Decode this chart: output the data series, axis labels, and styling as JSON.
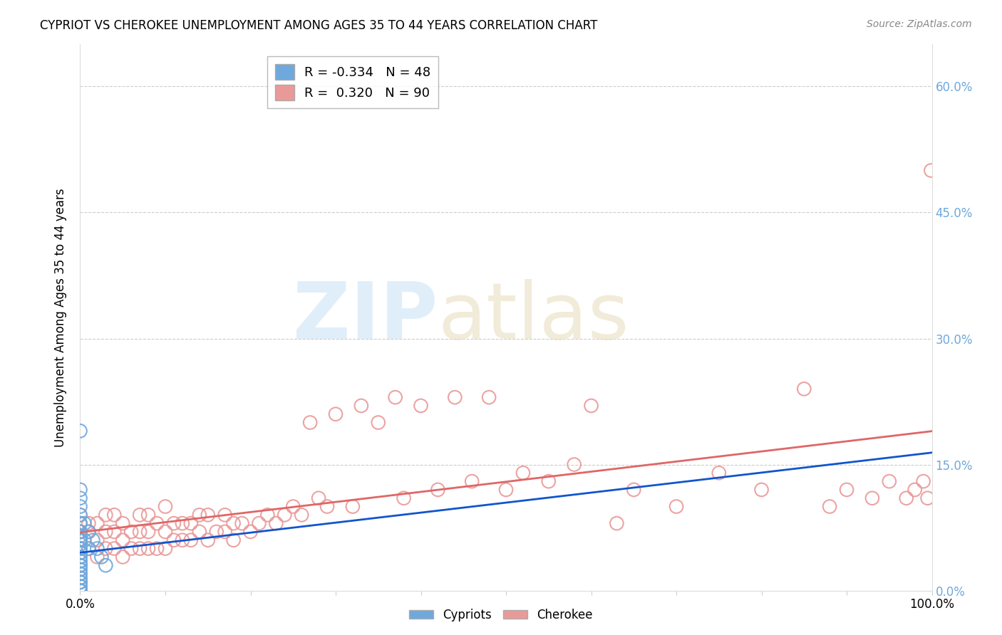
{
  "title": "CYPRIOT VS CHEROKEE UNEMPLOYMENT AMONG AGES 35 TO 44 YEARS CORRELATION CHART",
  "source": "Source: ZipAtlas.com",
  "ylabel": "Unemployment Among Ages 35 to 44 years",
  "xlim": [
    0,
    1.0
  ],
  "ylim": [
    0,
    0.65
  ],
  "xticks": [
    0.0,
    0.1,
    0.2,
    0.3,
    0.4,
    0.5,
    0.6,
    0.7,
    0.8,
    0.9,
    1.0
  ],
  "xticklabels": [
    "0.0%",
    "",
    "",
    "",
    "",
    "",
    "",
    "",
    "",
    "",
    "100.0%"
  ],
  "yticks": [
    0.0,
    0.15,
    0.3,
    0.45,
    0.6
  ],
  "yticklabels_right": [
    "0.0%",
    "15.0%",
    "30.0%",
    "45.0%",
    "60.0%"
  ],
  "cypriot_color": "#6fa8dc",
  "cherokee_color": "#ea9999",
  "cypriot_line_color": "#1155cc",
  "cherokee_line_color": "#e06666",
  "legend_r_cypriot": "-0.334",
  "legend_n_cypriot": "48",
  "legend_r_cherokee": "0.320",
  "legend_n_cherokee": "90",
  "cypriot_x": [
    0.0,
    0.0,
    0.0,
    0.0,
    0.0,
    0.0,
    0.0,
    0.0,
    0.0,
    0.0,
    0.0,
    0.0,
    0.0,
    0.0,
    0.0,
    0.0,
    0.0,
    0.0,
    0.0,
    0.0,
    0.0,
    0.0,
    0.0,
    0.0,
    0.0,
    0.0,
    0.0,
    0.0,
    0.0,
    0.0,
    0.0,
    0.0,
    0.0,
    0.0,
    0.0,
    0.0,
    0.0,
    0.0,
    0.0,
    0.0,
    0.005,
    0.005,
    0.01,
    0.01,
    0.015,
    0.02,
    0.025,
    0.03
  ],
  "cypriot_y": [
    0.0,
    0.0,
    0.0,
    0.0,
    0.0,
    0.005,
    0.005,
    0.01,
    0.01,
    0.01,
    0.015,
    0.015,
    0.02,
    0.02,
    0.025,
    0.025,
    0.03,
    0.03,
    0.03,
    0.035,
    0.035,
    0.04,
    0.04,
    0.045,
    0.045,
    0.05,
    0.05,
    0.055,
    0.06,
    0.06,
    0.065,
    0.07,
    0.07,
    0.08,
    0.08,
    0.09,
    0.1,
    0.11,
    0.12,
    0.19,
    0.06,
    0.08,
    0.05,
    0.07,
    0.06,
    0.05,
    0.04,
    0.03
  ],
  "cherokee_x": [
    0.0,
    0.0,
    0.0,
    0.0,
    0.0,
    0.01,
    0.01,
    0.01,
    0.02,
    0.02,
    0.02,
    0.03,
    0.03,
    0.03,
    0.04,
    0.04,
    0.04,
    0.05,
    0.05,
    0.05,
    0.06,
    0.06,
    0.07,
    0.07,
    0.07,
    0.08,
    0.08,
    0.08,
    0.09,
    0.09,
    0.1,
    0.1,
    0.1,
    0.11,
    0.11,
    0.12,
    0.12,
    0.13,
    0.13,
    0.14,
    0.14,
    0.15,
    0.15,
    0.16,
    0.17,
    0.17,
    0.18,
    0.18,
    0.19,
    0.2,
    0.21,
    0.22,
    0.23,
    0.24,
    0.25,
    0.26,
    0.27,
    0.28,
    0.29,
    0.3,
    0.32,
    0.33,
    0.35,
    0.37,
    0.38,
    0.4,
    0.42,
    0.44,
    0.46,
    0.48,
    0.5,
    0.52,
    0.55,
    0.58,
    0.6,
    0.63,
    0.65,
    0.7,
    0.75,
    0.8,
    0.85,
    0.88,
    0.9,
    0.93,
    0.95,
    0.97,
    0.98,
    0.99,
    0.995,
    0.999
  ],
  "cherokee_y": [
    0.05,
    0.06,
    0.07,
    0.08,
    0.09,
    0.05,
    0.07,
    0.08,
    0.04,
    0.06,
    0.08,
    0.05,
    0.07,
    0.09,
    0.05,
    0.07,
    0.09,
    0.04,
    0.06,
    0.08,
    0.05,
    0.07,
    0.05,
    0.07,
    0.09,
    0.05,
    0.07,
    0.09,
    0.05,
    0.08,
    0.05,
    0.07,
    0.1,
    0.06,
    0.08,
    0.06,
    0.08,
    0.06,
    0.08,
    0.07,
    0.09,
    0.06,
    0.09,
    0.07,
    0.07,
    0.09,
    0.06,
    0.08,
    0.08,
    0.07,
    0.08,
    0.09,
    0.08,
    0.09,
    0.1,
    0.09,
    0.2,
    0.11,
    0.1,
    0.21,
    0.1,
    0.22,
    0.2,
    0.23,
    0.11,
    0.22,
    0.12,
    0.23,
    0.13,
    0.23,
    0.12,
    0.14,
    0.13,
    0.15,
    0.22,
    0.08,
    0.12,
    0.1,
    0.14,
    0.12,
    0.24,
    0.1,
    0.12,
    0.11,
    0.13,
    0.11,
    0.12,
    0.13,
    0.11,
    0.5
  ],
  "background_color": "#ffffff",
  "grid_color": "#cccccc",
  "right_tick_color": "#6fa8dc"
}
